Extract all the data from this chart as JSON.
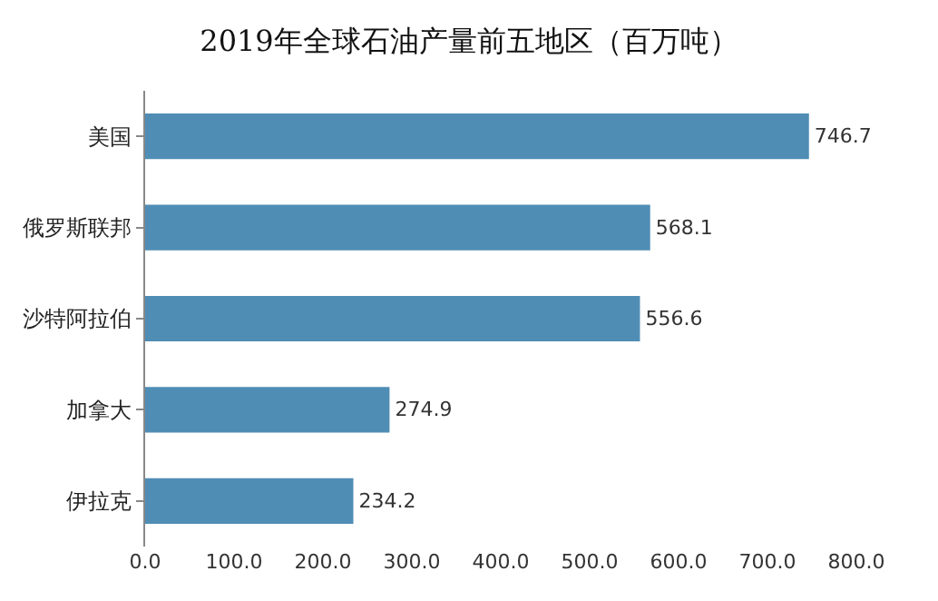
{
  "chart_data": {
    "type": "bar",
    "orientation": "horizontal",
    "title": "2019年全球石油产量前五地区（百万吨）",
    "categories": [
      "美国",
      "俄罗斯联邦",
      "沙特阿拉伯",
      "加拿大",
      "伊拉克"
    ],
    "values": [
      746.7,
      568.1,
      556.6,
      274.9,
      234.2
    ],
    "color": "#4f8db5",
    "xlim": [
      0,
      800
    ],
    "xticks": [
      {
        "value": 0,
        "label": "0.0"
      },
      {
        "value": 100,
        "label": "100.0"
      },
      {
        "value": 200,
        "label": "200.0"
      },
      {
        "value": 300,
        "label": "300.0"
      },
      {
        "value": 400,
        "label": "400.0"
      },
      {
        "value": 500,
        "label": "500.0"
      },
      {
        "value": 600,
        "label": "600.0"
      },
      {
        "value": 700,
        "label": "700.0"
      },
      {
        "value": 800,
        "label": "800.0"
      }
    ],
    "data_labels": true
  }
}
